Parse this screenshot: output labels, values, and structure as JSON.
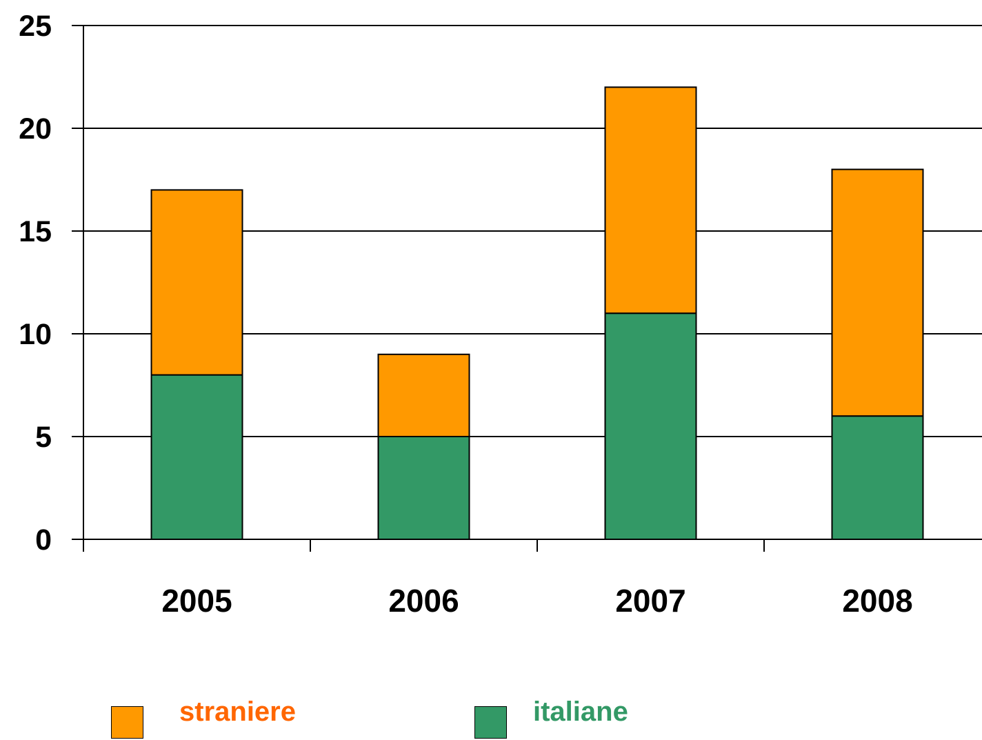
{
  "chart_data": {
    "type": "bar",
    "stacked": true,
    "categories": [
      "2005",
      "2006",
      "2007",
      "2008"
    ],
    "series": [
      {
        "name": "italiane",
        "values": [
          8,
          5,
          11,
          6
        ],
        "color": "#339966"
      },
      {
        "name": "straniere",
        "values": [
          9,
          4,
          11,
          12
        ],
        "color": "#ff9900"
      }
    ],
    "y_ticks": [
      "0",
      "5",
      "10",
      "15",
      "20",
      "25"
    ],
    "ylim": [
      0,
      25
    ],
    "grid": true,
    "legend_position": "bottom"
  },
  "legend": {
    "straniere_label": "straniere",
    "straniere_color": "#ff9900",
    "straniere_text_color": "#ff6600",
    "italiane_label": "italiane",
    "italiane_color": "#339966",
    "italiane_text_color": "#339966"
  }
}
